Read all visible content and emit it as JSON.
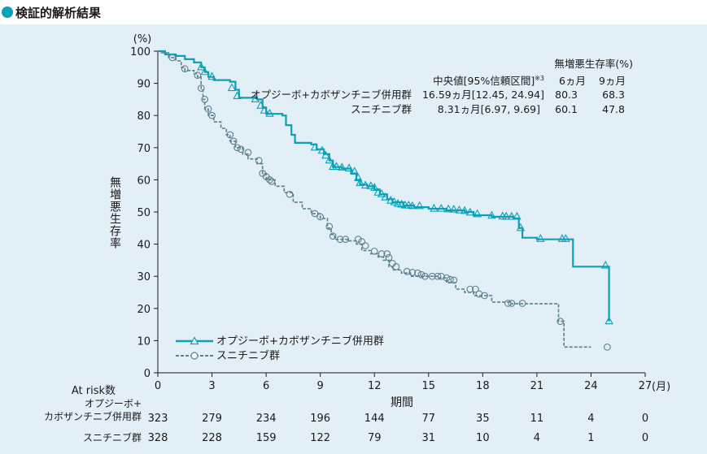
{
  "page": {
    "title": "検証的解析結果"
  },
  "chart_data": {
    "type": "line",
    "subtype": "kaplan-meier",
    "y_unit_label": "(%)",
    "ylabel": "無増悪生存率",
    "xlabel": "期間",
    "x_unit_label": "(月)",
    "xlim": [
      0,
      27
    ],
    "ylim": [
      0,
      100
    ],
    "xticks": [
      "0",
      "3",
      "6",
      "9",
      "12",
      "15",
      "18",
      "21",
      "24",
      "27"
    ],
    "yticks": [
      "0",
      "10",
      "20",
      "30",
      "40",
      "50",
      "60",
      "70",
      "80",
      "90",
      "100"
    ],
    "grid": false,
    "colors": {
      "series1": "#0aa0b8",
      "series2": "#5b7f8c",
      "panel": "#e3eff6"
    },
    "legend": {
      "position": "bottom-left",
      "entries": [
        "オプジーボ+カボザンチニブ併用群",
        "スニチニブ群"
      ]
    },
    "summary_table": {
      "header_title": "無増悪生存率(%)",
      "col_median": "中央値[95%信頼区間]",
      "footnote_mark": "※3",
      "col_6m": "6ヵ月",
      "col_9m": "9ヵ月",
      "rows": [
        {
          "group": "オプジーボ+カボザンチニブ併用群",
          "median": "16.59ヵ月[12.45, 24.94]",
          "m6": "80.3",
          "m9": "68.3"
        },
        {
          "group": "スニチニブ群",
          "median": "8.31ヵ月[6.97, 9.69]",
          "m6": "60.1",
          "m9": "47.8"
        }
      ]
    },
    "at_risk": {
      "label": "At risk数",
      "rows": [
        {
          "group": "オプジーボ+\nカボザンチニブ併用群",
          "values": [
            "323",
            "279",
            "234",
            "196",
            "144",
            "77",
            "35",
            "11",
            "4",
            "0"
          ]
        },
        {
          "group": "スニチニブ群",
          "values": [
            "328",
            "228",
            "159",
            "122",
            "79",
            "31",
            "10",
            "4",
            "1",
            "0"
          ]
        }
      ]
    },
    "series": [
      {
        "name": "オプジーボ+カボザンチニブ併用群",
        "marker": "triangle",
        "line_style": "solid",
        "steps": [
          [
            0,
            100
          ],
          [
            0.4,
            99
          ],
          [
            1,
            98.5
          ],
          [
            1.5,
            97.5
          ],
          [
            2,
            96.5
          ],
          [
            2.4,
            95
          ],
          [
            2.6,
            93.5
          ],
          [
            2.8,
            92
          ],
          [
            3.1,
            91
          ],
          [
            4,
            90.5
          ],
          [
            4.3,
            88
          ],
          [
            4.5,
            85.5
          ],
          [
            5.5,
            85
          ],
          [
            5.8,
            82.5
          ],
          [
            6,
            80.5
          ],
          [
            6.9,
            80
          ],
          [
            7.1,
            77
          ],
          [
            7.4,
            74
          ],
          [
            7.6,
            71.5
          ],
          [
            8.5,
            71
          ],
          [
            8.8,
            69.5
          ],
          [
            9.2,
            68
          ],
          [
            9.5,
            66
          ],
          [
            9.7,
            64
          ],
          [
            10.2,
            63.5
          ],
          [
            10.7,
            62
          ],
          [
            11,
            60
          ],
          [
            11.2,
            58.5
          ],
          [
            11.6,
            58
          ],
          [
            12,
            57
          ],
          [
            12.3,
            55.5
          ],
          [
            12.7,
            54
          ],
          [
            13,
            53
          ],
          [
            13.6,
            52
          ],
          [
            14.2,
            51.5
          ],
          [
            15,
            51
          ],
          [
            16,
            50.5
          ],
          [
            17,
            50
          ],
          [
            17.5,
            49
          ],
          [
            18.5,
            48.5
          ],
          [
            19.7,
            48
          ],
          [
            20,
            45
          ],
          [
            20.2,
            42
          ],
          [
            21,
            41.5
          ],
          [
            23,
            33
          ],
          [
            24.9,
            33
          ],
          [
            25,
            16
          ]
        ],
        "markers": [
          [
            2.4,
            95
          ],
          [
            2.6,
            93.5
          ],
          [
            3,
            92
          ],
          [
            4.1,
            88.5
          ],
          [
            4.4,
            86
          ],
          [
            5.4,
            85
          ],
          [
            5.7,
            83
          ],
          [
            5.9,
            81.5
          ],
          [
            6.2,
            80.5
          ],
          [
            8.7,
            70
          ],
          [
            9.1,
            69
          ],
          [
            9.3,
            67.5
          ],
          [
            9.5,
            66
          ],
          [
            9.7,
            64
          ],
          [
            9.9,
            64
          ],
          [
            10.2,
            63.8
          ],
          [
            10.6,
            63.5
          ],
          [
            10.9,
            62.5
          ],
          [
            11.1,
            60.5
          ],
          [
            11.2,
            59
          ],
          [
            11.5,
            58.2
          ],
          [
            11.8,
            58
          ],
          [
            12,
            57.5
          ],
          [
            12.2,
            56
          ],
          [
            12.4,
            55.5
          ],
          [
            12.6,
            54.5
          ],
          [
            12.9,
            53.5
          ],
          [
            13.1,
            53
          ],
          [
            13.3,
            52.5
          ],
          [
            13.5,
            52.3
          ],
          [
            13.7,
            52
          ],
          [
            13.9,
            52
          ],
          [
            14.1,
            51.8
          ],
          [
            14.5,
            51.8
          ],
          [
            15.3,
            51
          ],
          [
            15.7,
            51
          ],
          [
            16.1,
            50.8
          ],
          [
            16.4,
            50.7
          ],
          [
            16.7,
            50.5
          ],
          [
            17,
            50.3
          ],
          [
            17.3,
            49.8
          ],
          [
            17.7,
            49.3
          ],
          [
            18.5,
            48.8
          ],
          [
            19.1,
            48.6
          ],
          [
            19.3,
            48.5
          ],
          [
            19.6,
            48.5
          ],
          [
            19.9,
            48.5
          ],
          [
            20.1,
            45
          ],
          [
            21.2,
            41.6
          ],
          [
            22.4,
            41.6
          ],
          [
            22.6,
            41.6
          ],
          [
            24.8,
            33.3
          ],
          [
            25,
            16
          ]
        ]
      },
      {
        "name": "スニチニブ群",
        "marker": "circle",
        "line_style": "dashed",
        "steps": [
          [
            0,
            100
          ],
          [
            0.2,
            99.5
          ],
          [
            0.6,
            98
          ],
          [
            1,
            97
          ],
          [
            1.3,
            95
          ],
          [
            1.5,
            94
          ],
          [
            2,
            93
          ],
          [
            2.2,
            92
          ],
          [
            2.4,
            88
          ],
          [
            2.5,
            85
          ],
          [
            2.6,
            82
          ],
          [
            2.8,
            80
          ],
          [
            3.1,
            78
          ],
          [
            3.5,
            76
          ],
          [
            3.8,
            74
          ],
          [
            4,
            72
          ],
          [
            4.3,
            70
          ],
          [
            4.7,
            68
          ],
          [
            5,
            66.5
          ],
          [
            5.5,
            65
          ],
          [
            5.8,
            62
          ],
          [
            6,
            60
          ],
          [
            6.5,
            58
          ],
          [
            7,
            56
          ],
          [
            7.5,
            53
          ],
          [
            8,
            51
          ],
          [
            8.5,
            49.5
          ],
          [
            9,
            48
          ],
          [
            9.4,
            45
          ],
          [
            9.6,
            43
          ],
          [
            9.8,
            41.5
          ],
          [
            10.5,
            41
          ],
          [
            11,
            40
          ],
          [
            11.3,
            38
          ],
          [
            11.8,
            37
          ],
          [
            12.2,
            36
          ],
          [
            12.5,
            35
          ],
          [
            12.8,
            33
          ],
          [
            13,
            32
          ],
          [
            13.5,
            31
          ],
          [
            14,
            30
          ],
          [
            15.5,
            29.5
          ],
          [
            16,
            28
          ],
          [
            16.5,
            26
          ],
          [
            17,
            25
          ],
          [
            17.5,
            24
          ],
          [
            18.5,
            22
          ],
          [
            19.5,
            21.5
          ],
          [
            22,
            21.5
          ],
          [
            22.2,
            16
          ],
          [
            22.5,
            8
          ],
          [
            24,
            8
          ]
        ],
        "markers": [
          [
            0.8,
            98
          ],
          [
            1.5,
            94.5
          ],
          [
            2.2,
            92.5
          ],
          [
            2.4,
            88.5
          ],
          [
            2.6,
            85
          ],
          [
            2.8,
            82
          ],
          [
            3,
            80
          ],
          [
            4,
            74
          ],
          [
            4.2,
            72
          ],
          [
            4.4,
            70
          ],
          [
            4.6,
            69.5
          ],
          [
            5,
            68.5
          ],
          [
            5.6,
            66
          ],
          [
            5.8,
            62
          ],
          [
            6,
            61
          ],
          [
            6.2,
            60
          ],
          [
            6.3,
            59.5
          ],
          [
            7.3,
            55.5
          ],
          [
            8.7,
            49.5
          ],
          [
            9,
            48.5
          ],
          [
            9.5,
            45.5
          ],
          [
            9.7,
            42.5
          ],
          [
            10.1,
            41.5
          ],
          [
            10.4,
            41.5
          ],
          [
            11.1,
            41.5
          ],
          [
            11.3,
            40.8
          ],
          [
            11.5,
            39.5
          ],
          [
            12,
            37.8
          ],
          [
            12.4,
            37
          ],
          [
            12.7,
            37
          ],
          [
            12.8,
            35.8
          ],
          [
            13,
            34
          ],
          [
            13.2,
            33
          ],
          [
            13.8,
            31.5
          ],
          [
            14.1,
            31.2
          ],
          [
            14.4,
            31
          ],
          [
            14.6,
            30.5
          ],
          [
            14.8,
            30
          ],
          [
            15.2,
            30
          ],
          [
            15.5,
            30
          ],
          [
            15.7,
            30
          ],
          [
            16,
            29.5
          ],
          [
            16.2,
            29
          ],
          [
            16.4,
            28.8
          ],
          [
            17.3,
            26
          ],
          [
            17.6,
            26
          ],
          [
            17.8,
            24.5
          ],
          [
            18.1,
            24
          ],
          [
            19.4,
            21.6
          ],
          [
            19.6,
            21.6
          ],
          [
            20.2,
            21.6
          ],
          [
            22.3,
            16
          ],
          [
            24.9,
            8
          ]
        ]
      }
    ]
  }
}
